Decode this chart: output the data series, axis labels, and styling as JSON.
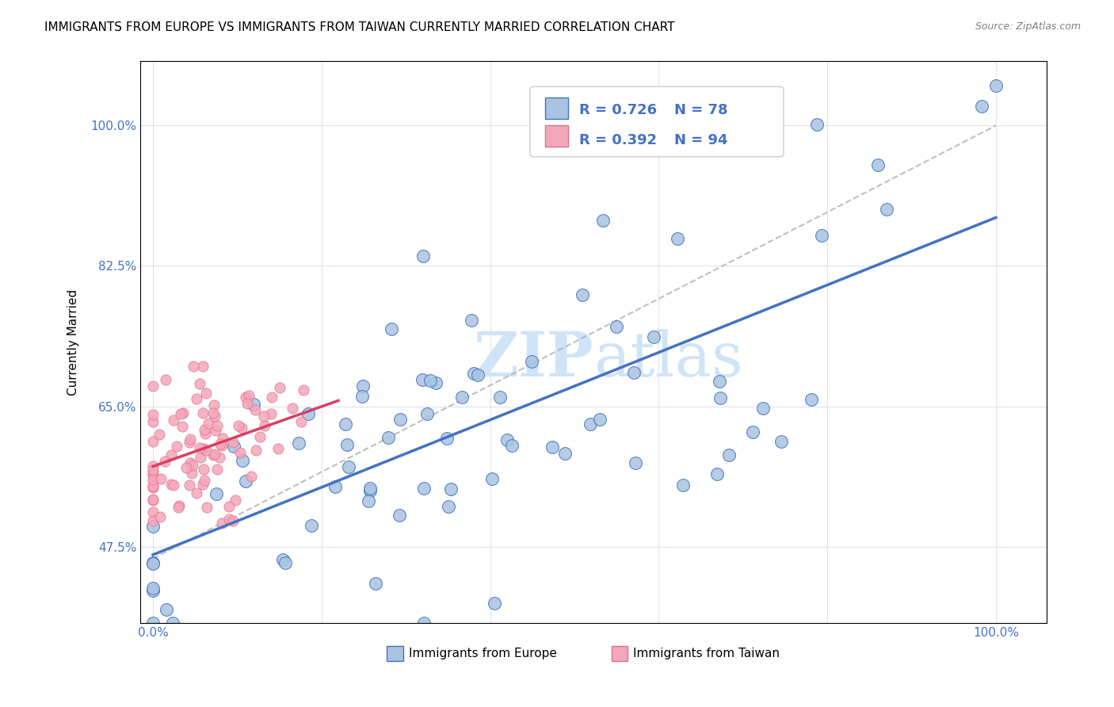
{
  "title": "IMMIGRANTS FROM EUROPE VS IMMIGRANTS FROM TAIWAN CURRENTLY MARRIED CORRELATION CHART",
  "source": "Source: ZipAtlas.com",
  "ylabel": "Currently Married",
  "yticks": [
    47.5,
    65.0,
    82.5,
    100.0
  ],
  "ytick_labels": [
    "47.5%",
    "65.0%",
    "82.5%",
    "100.0%"
  ],
  "legend_blue_r": "R = 0.726",
  "legend_blue_n": "N = 78",
  "legend_pink_r": "R = 0.392",
  "legend_pink_n": "N = 94",
  "legend_blue_label": "Immigrants from Europe",
  "legend_pink_label": "Immigrants from Taiwan",
  "blue_fill": "#a8c4e0",
  "pink_fill": "#f4a7b9",
  "blue_edge": "#4472c4",
  "pink_edge": "#e07090",
  "blue_line": "#4472c4",
  "pink_line": "#d94060",
  "dash_color": "#b0b0b0",
  "watermark_color": "#d0e4f7",
  "axis_tick_color": "#4472c4",
  "grid_color": "#d0d8e8",
  "n_blue": 78,
  "n_pink": 94,
  "blue_r": 0.726,
  "pink_r": 0.392,
  "xlim": [
    0.0,
    1.0
  ],
  "ylim": [
    0.38,
    1.08
  ]
}
